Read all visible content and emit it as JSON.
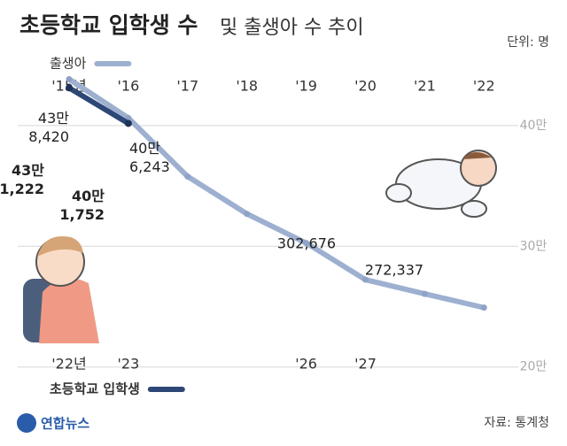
{
  "chart_data": {
    "type": "line",
    "title": [
      "초등학교 입학생 수",
      "및 출생아 수 추이"
    ],
    "unit": "단위: 명",
    "source": "자료: 통계청",
    "logo": "연합뉴스",
    "categories": [
      "'15년",
      "'16",
      "'17",
      "'18",
      "'19",
      "'20",
      "'21",
      "'22"
    ],
    "categories_bottom": [
      "'22년",
      "'23",
      null,
      null,
      "'26",
      "'27",
      null,
      null
    ],
    "series": [
      {
        "name": "출생아",
        "color": "#9db0d0",
        "values": [
          438420,
          406243,
          357771,
          326822,
          302676,
          272337,
          260562,
          249186
        ],
        "value_labels": [
          "43만 8,420",
          "40만 6,243",
          null,
          null,
          "302,676",
          "272,337",
          null,
          null
        ]
      },
      {
        "name": "초등학교 입학생",
        "color": "#2d4776",
        "values": [
          431222,
          401752,
          null,
          null,
          null,
          null,
          null,
          null
        ],
        "value_labels": [
          "43만 1,222",
          "40만 1,752",
          null,
          null,
          null,
          null,
          null,
          null
        ]
      }
    ],
    "ylim": [
      180000,
      460000
    ],
    "yticks": [
      {
        "value": 200000,
        "label": "20만"
      },
      {
        "value": 300000,
        "label": "30만"
      },
      {
        "value": 400000,
        "label": "40만"
      }
    ],
    "grid": true
  }
}
